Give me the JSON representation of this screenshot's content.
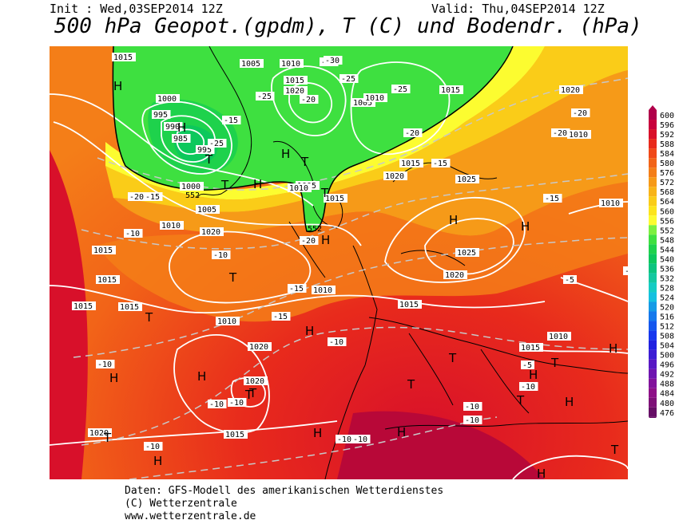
{
  "header": {
    "init_text": "Init : Wed,03SEP2014 12Z",
    "valid_text": "Valid: Thu,04SEP2014 12Z",
    "title": "500 hPa Geopot.(gpdm), T (C) und Bodendr. (hPa)"
  },
  "legend": {
    "levels": [
      600,
      596,
      592,
      588,
      584,
      580,
      576,
      572,
      568,
      564,
      560,
      556,
      552,
      548,
      544,
      540,
      536,
      532,
      528,
      524,
      520,
      516,
      512,
      508,
      504,
      500,
      496,
      492,
      488,
      484,
      480,
      476
    ],
    "colors": [
      "#b0004a",
      "#c8003c",
      "#d8102a",
      "#e82a1c",
      "#f04818",
      "#f26418",
      "#f47e18",
      "#f69a18",
      "#f8b418",
      "#facc18",
      "#fce41c",
      "#fcfc30",
      "#7cf040",
      "#3ee040",
      "#1ed24c",
      "#0cc85c",
      "#0cc47e",
      "#14c8a0",
      "#14ccc4",
      "#14c0e0",
      "#149ae6",
      "#1478ec",
      "#1456ee",
      "#1636ee",
      "#2020e0",
      "#3c1cd4",
      "#5818c4",
      "#6e14b0",
      "#82129c",
      "#8e1088",
      "#7e1078",
      "#660e66"
    ]
  },
  "map": {
    "pressure_labels": [
      "1015",
      "1005",
      "1010",
      "1000",
      "995",
      "990",
      "985",
      "995",
      "1000",
      "1005",
      "1010",
      "1015",
      "1020",
      "1015",
      "1010",
      "1005",
      "1010",
      "1015",
      "1020",
      "1015",
      "1020",
      "1010",
      "1005",
      "1015",
      "1020",
      "1015",
      "1025",
      "1025",
      "1020",
      "1015",
      "1010",
      "1015",
      "1020",
      "1020",
      "1015",
      "1010",
      "1015",
      "1010",
      "1020",
      "1015",
      "1010"
    ],
    "temp_labels": [
      "-25",
      "-30",
      "-25",
      "-25",
      "-20",
      "-15",
      "-25",
      "-25",
      "-20",
      "-20",
      "-15",
      "-20",
      "-20",
      "-20",
      "-15",
      "-15",
      "-10",
      "-10",
      "-15",
      "-15",
      "-10",
      "-10",
      "-10",
      "-10",
      "-10",
      "-10",
      "-10",
      "-10",
      "-5",
      "-5",
      "-10",
      "-10",
      "-15"
    ],
    "geopot_labels": [
      "552",
      "552"
    ],
    "pressure_centers": [
      "H",
      "H",
      "H",
      "T",
      "T",
      "T",
      "T",
      "H",
      "H",
      "T",
      "T",
      "H",
      "T",
      "H",
      "H",
      "T",
      "H",
      "T",
      "H",
      "T",
      "T",
      "H",
      "T",
      "T",
      "H",
      "H",
      "H",
      "T",
      "H",
      "H",
      "H"
    ]
  },
  "footer": {
    "line1": "Daten: GFS-Modell des amerikanischen Wetterdienstes",
    "line2": "(C) Wetterzentrale",
    "line3": "www.wetterzentrale.de"
  }
}
